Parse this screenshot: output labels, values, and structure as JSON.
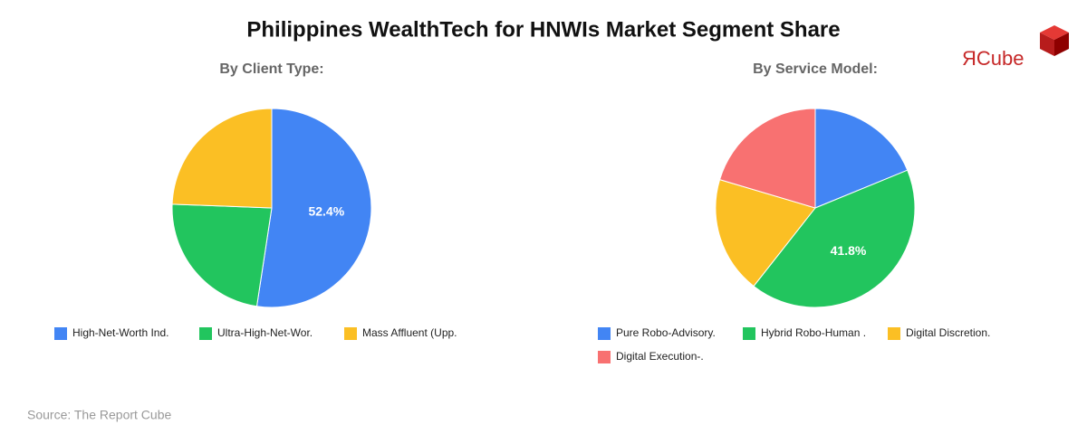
{
  "title": "Philippines WealthTech for HNWIs Market Segment Share",
  "source": "Source: The Report Cube",
  "logo": "ЯCube",
  "chart_data": [
    {
      "type": "pie",
      "subtitle": "By Client Type:",
      "categories": [
        "High-Net-Worth Ind.",
        "Ultra-High-Net-Wor.",
        "Mass Affluent (Upp."
      ],
      "values": [
        52.4,
        23.2,
        24.4
      ],
      "value_labels": [
        "52.4%",
        null,
        null
      ],
      "colors": [
        "#4285f4",
        "#22c55e",
        "#fbbf24"
      ]
    },
    {
      "type": "pie",
      "subtitle": "By Service Model:",
      "categories": [
        "Pure Robo-Advisory.",
        "Hybrid Robo-Human .",
        "Digital Discretion.",
        "Digital Execution-."
      ],
      "values": [
        18.8,
        41.8,
        19.0,
        20.4
      ],
      "value_labels": [
        null,
        "41.8%",
        null,
        null
      ],
      "colors": [
        "#4285f4",
        "#22c55e",
        "#fbbf24",
        "#f87171"
      ]
    }
  ]
}
